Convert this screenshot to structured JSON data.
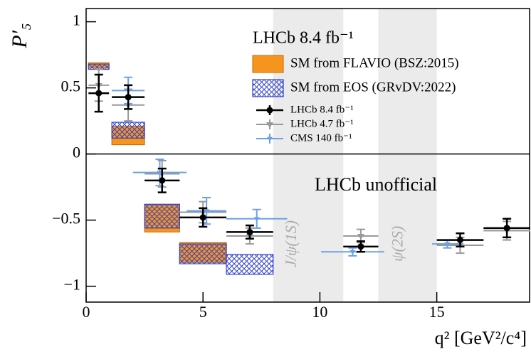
{
  "chart_data": {
    "type": "errorbar",
    "xlabel": "q² [GeV²/c⁴]",
    "ylabel": "P′₅",
    "annotation": "LHCb unofficial",
    "legend_title": "LHCb 8.4 fb⁻¹",
    "xlim": [
      0,
      19
    ],
    "ylim": [
      -1.12,
      1.1
    ],
    "xticks": [
      0,
      5,
      10,
      15
    ],
    "yticks": [
      {
        "value": -1,
        "label": "−1"
      },
      {
        "value": -0.5,
        "label": "−0.5"
      },
      0,
      0.5,
      1
    ],
    "vetoes": [
      {
        "range": [
          8,
          11
        ],
        "label": "J/ψ(1S)"
      },
      {
        "range": [
          12.5,
          15
        ],
        "label": "ψ(2S)"
      }
    ],
    "predictions": [
      {
        "name": "SM from FLAVIO (BSZ:2015)",
        "color": "#f7941d",
        "bins": [
          [
            0.1,
            0.98
          ],
          [
            1.1,
            2.5
          ],
          [
            2.5,
            4
          ],
          [
            4,
            6
          ]
        ],
        "low": [
          0.65,
          0.07,
          -0.59,
          -0.82
        ],
        "high": [
          0.69,
          0.21,
          -0.38,
          -0.67
        ]
      },
      {
        "name": "SM from EOS (GRvDV:2022)",
        "color": "#3344cc",
        "bins": [
          [
            0.1,
            0.98
          ],
          [
            1.1,
            2.5
          ],
          [
            2.5,
            4
          ],
          [
            4,
            6
          ],
          [
            6,
            8
          ]
        ],
        "low": [
          0.64,
          0.12,
          -0.56,
          -0.83,
          -0.91
        ],
        "high": [
          0.68,
          0.24,
          -0.38,
          -0.68,
          -0.76
        ]
      }
    ],
    "series": [
      {
        "name": "LHCb 4.7 fb⁻¹",
        "color": "#999999",
        "x": [
          0.54,
          1.8,
          3.25,
          5,
          7,
          11.75,
          16,
          18
        ],
        "xerr": [
          0.44,
          0.7,
          0.75,
          1,
          1,
          0.75,
          1,
          1
        ],
        "values": [
          0.52,
          0.37,
          -0.15,
          -0.44,
          -0.62,
          -0.62,
          -0.69,
          -0.58
        ],
        "yerr": [
          0.12,
          0.12,
          0.1,
          0.08,
          0.06,
          0.05,
          0.06,
          0.07
        ]
      },
      {
        "name": "CMS 140 fb⁻¹",
        "color": "#6f9fe8",
        "x": [
          1.8,
          3.15,
          5.15,
          7.3,
          11.4,
          15.45
        ],
        "xerr": [
          0.7,
          1.15,
          0.85,
          1.3,
          1.35,
          0.65
        ],
        "values": [
          0.48,
          -0.14,
          -0.43,
          -0.49,
          -0.74,
          -0.68
        ],
        "yerr": [
          0.1,
          0.1,
          0.1,
          0.07,
          0.03,
          0.03
        ]
      },
      {
        "name": "LHCb 8.4 fb⁻¹",
        "color": "#000000",
        "x": [
          0.54,
          1.8,
          3.25,
          5,
          7,
          11.75,
          16,
          18
        ],
        "xerr": [
          0.44,
          0.7,
          0.75,
          1,
          1,
          0.75,
          1,
          1
        ],
        "values": [
          0.46,
          0.43,
          -0.2,
          -0.48,
          -0.59,
          -0.7,
          -0.65,
          -0.56
        ],
        "yerr": [
          0.14,
          0.09,
          0.09,
          0.07,
          0.05,
          0.04,
          0.05,
          0.07
        ]
      }
    ]
  }
}
